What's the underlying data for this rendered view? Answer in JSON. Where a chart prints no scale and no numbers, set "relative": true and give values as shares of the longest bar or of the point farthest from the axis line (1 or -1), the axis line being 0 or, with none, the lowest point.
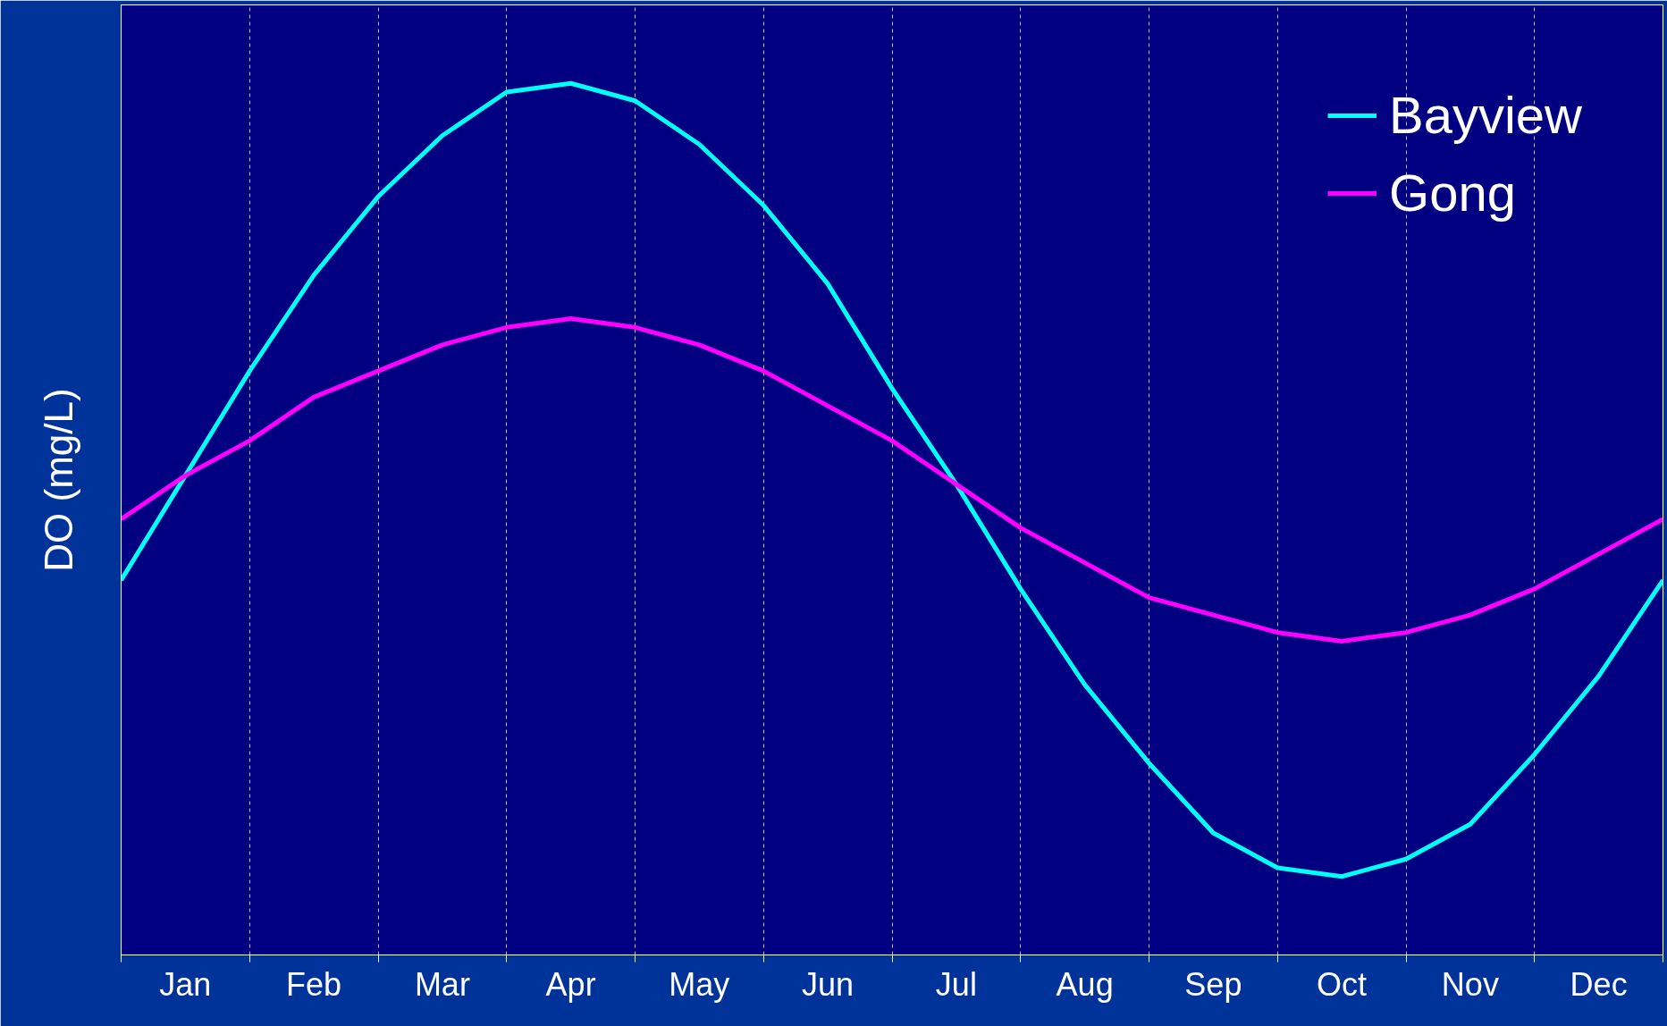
{
  "chart_data": {
    "type": "line",
    "ylabel": "DO (mg/L)",
    "relative": true,
    "grid": "x",
    "legend": "top right",
    "marker": "none",
    "line_style": "solid",
    "categories": [
      null,
      "Jan",
      null,
      "Feb",
      null,
      "Mar",
      null,
      "Apr",
      null,
      "May",
      null,
      "Jun",
      null,
      "Jul",
      null,
      "Aug",
      null,
      "Sep",
      null,
      "Oct",
      null,
      "Nov",
      null,
      "Dec",
      null
    ],
    "series": [
      {
        "name": "Bayview",
        "color": "#00ffff",
        "values": [
          0.43,
          0.55,
          0.67,
          0.78,
          0.87,
          0.94,
          0.99,
          1.0,
          0.98,
          0.93,
          0.86,
          0.77,
          0.65,
          0.54,
          0.42,
          0.31,
          0.22,
          0.14,
          0.1,
          0.09,
          0.11,
          0.15,
          0.23,
          0.32,
          0.43
        ]
      },
      {
        "name": "Gong",
        "color": "#ff00ff",
        "values": [
          0.5,
          0.55,
          0.59,
          0.64,
          0.67,
          0.7,
          0.72,
          0.73,
          0.72,
          0.7,
          0.67,
          0.63,
          0.59,
          0.54,
          0.49,
          0.45,
          0.41,
          0.39,
          0.37,
          0.36,
          0.37,
          0.39,
          0.42,
          0.46,
          0.5
        ]
      }
    ]
  }
}
